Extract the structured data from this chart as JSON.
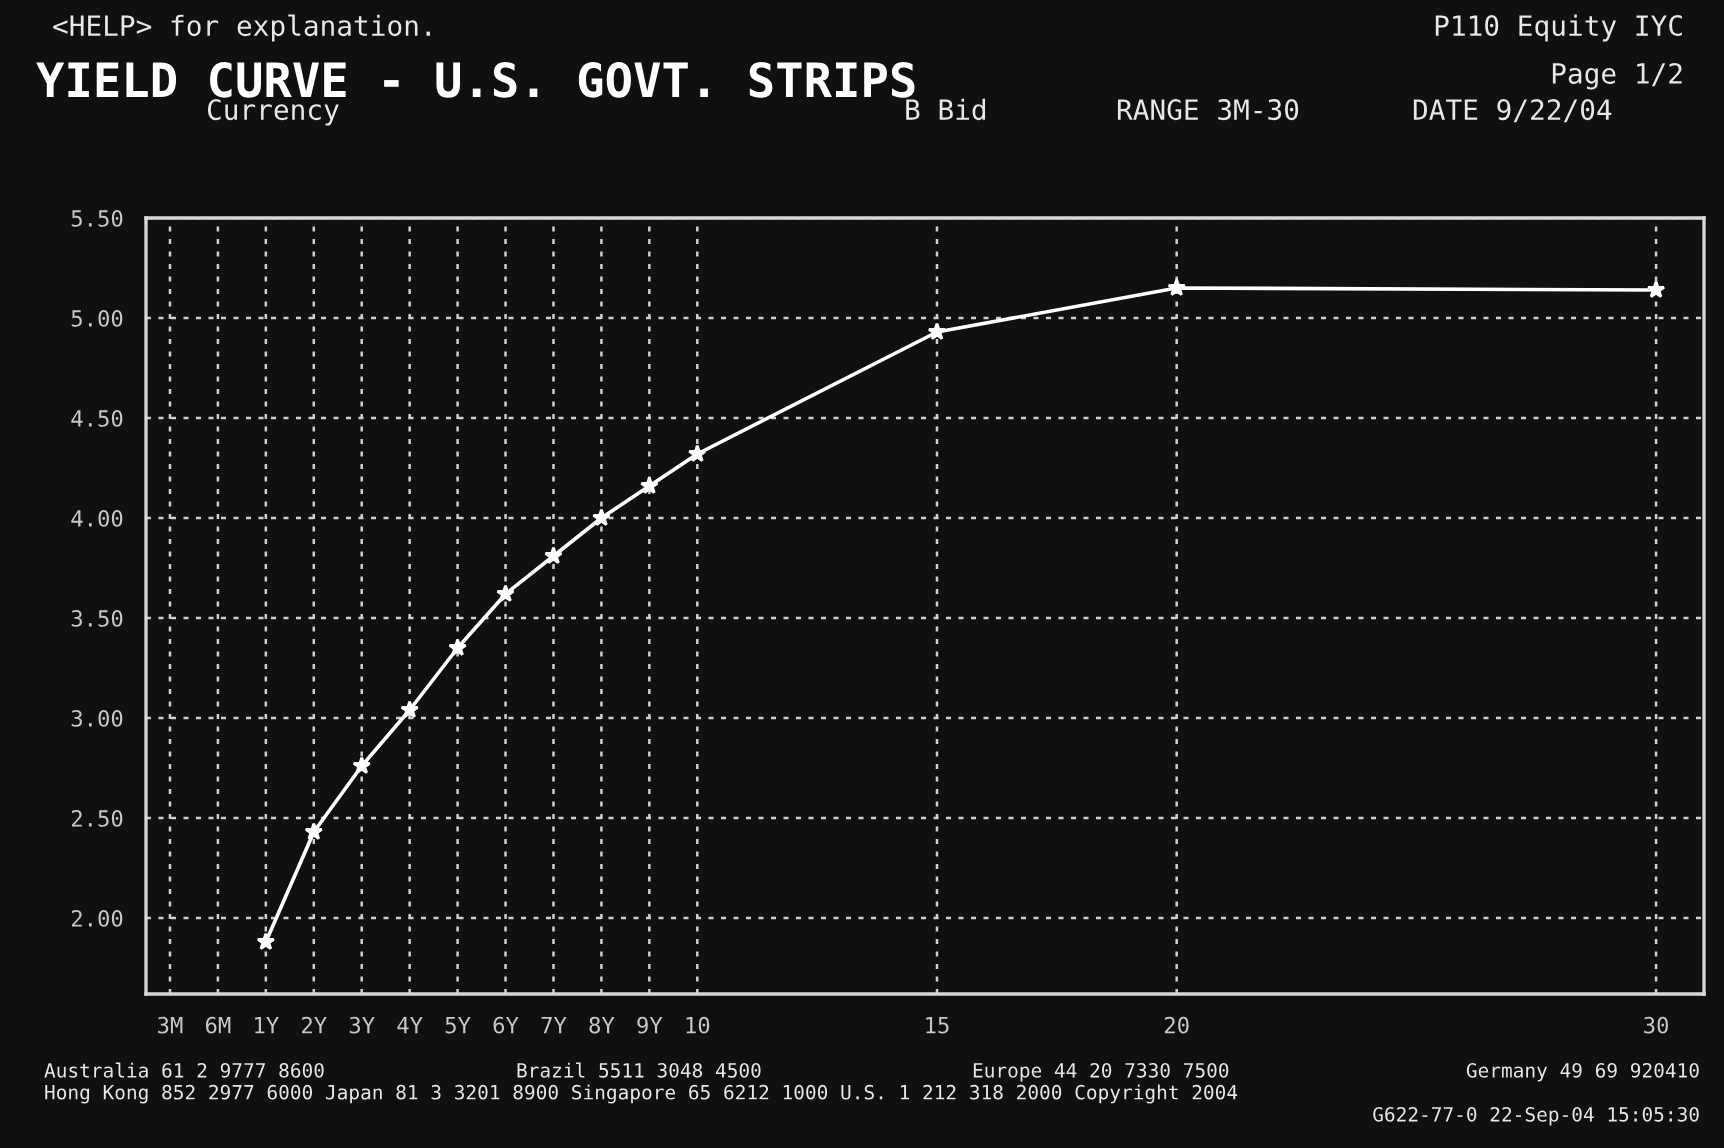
{
  "chart_data": {
    "type": "line",
    "title": "YIELD CURVE - U.S. GOVT. STRIPS",
    "categories": [
      "3M",
      "6M",
      "1Y",
      "2Y",
      "3Y",
      "4Y",
      "5Y",
      "6Y",
      "7Y",
      "8Y",
      "9Y",
      "10",
      null,
      null,
      null,
      null,
      "15",
      null,
      null,
      null,
      null,
      "20",
      null,
      null,
      null,
      null,
      null,
      null,
      null,
      null,
      null,
      "30"
    ],
    "series": [
      {
        "color": "#ffffff",
        "values": [
          null,
          null,
          1.88,
          2.43,
          2.76,
          3.04,
          3.35,
          3.62,
          3.81,
          4.0,
          4.16,
          4.32,
          null,
          null,
          null,
          null,
          4.93,
          null,
          null,
          null,
          null,
          5.15,
          null,
          null,
          null,
          null,
          null,
          null,
          null,
          null,
          null,
          5.14
        ]
      }
    ],
    "ylim": [
      1.62,
      5.5
    ],
    "yticks": [
      {
        "value": 2,
        "label": "2.00"
      },
      {
        "value": 2.5,
        "label": "2.50"
      },
      {
        "value": 3,
        "label": "3.00"
      },
      {
        "value": 3.5,
        "label": "3.50"
      },
      {
        "value": 4,
        "label": "4.00"
      },
      {
        "value": 4.5,
        "label": "4.50"
      },
      {
        "value": 5,
        "label": "5.00"
      },
      {
        "value": 5.5,
        "label": "5.50"
      }
    ],
    "grid": true,
    "marker": "star",
    "line_style": "solid",
    "annotations": [
      "<HELP> for explanation.",
      "P110 Equity IYC",
      "Page 1/2",
      "Currency",
      "B Bid",
      "RANGE 3M-30",
      "DATE 9/22/04",
      "Australia 61 2 9777 8600",
      "Brazil 5511 3048 4500",
      "Europe 44 20 7330 7500",
      "Germany 49 69 920410",
      "Hong Kong 852 2977 6000 Japan 81 3 3201 8900 Singapore 65 6212 1000 U.S. 1 212 318 2000 Copyright 2004",
      "G622-77-0 22-Sep-04 15:05:30"
    ]
  }
}
